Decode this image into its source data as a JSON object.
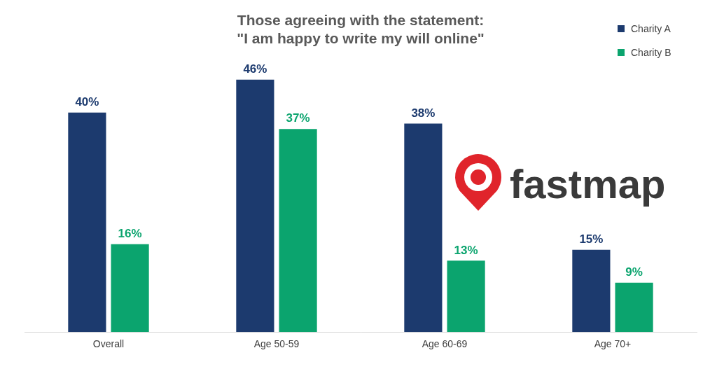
{
  "chart_data": {
    "type": "bar",
    "title": [
      "Those agreeing with the statement:",
      "\"I am happy to write my will online\""
    ],
    "categories": [
      "Overall",
      "Age 50-59",
      "Age 60-69",
      "Age 70+"
    ],
    "series": [
      {
        "name": "Charity A",
        "color": "#1c3a6e",
        "values": [
          40,
          46,
          38,
          15
        ],
        "value_labels": [
          "40%",
          "46%",
          "38%",
          "15%"
        ]
      },
      {
        "name": "Charity B",
        "color": "#0ba46e",
        "values": [
          16,
          37,
          13,
          9
        ],
        "value_labels": [
          "16%",
          "37%",
          "13%",
          "9%"
        ]
      }
    ],
    "ylim": [
      0,
      50
    ],
    "grid": false,
    "legend": "top right",
    "data_labels": true,
    "tick_labels": "x",
    "annotations": [
      "fastmap"
    ]
  }
}
